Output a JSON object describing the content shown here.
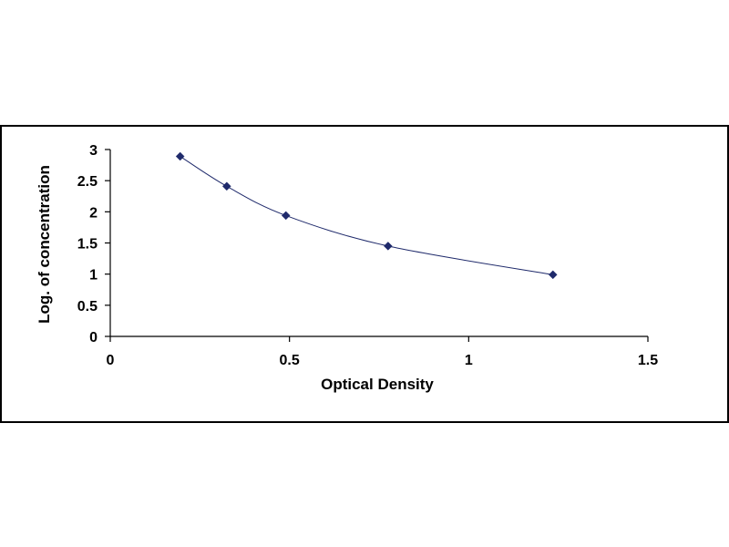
{
  "chart_data": {
    "type": "scatter",
    "title": "",
    "xlabel": "Optical Density",
    "ylabel": "Log. of concentration",
    "xlim": [
      0,
      1.5
    ],
    "ylim": [
      0,
      3
    ],
    "x_ticks": [
      "0",
      "0.5",
      "1",
      "1.5"
    ],
    "y_ticks": [
      "0",
      "0.5",
      "1",
      "1.5",
      "2",
      "2.5",
      "3"
    ],
    "grid": false,
    "legend": false,
    "series": [
      {
        "x": [
          0.195,
          0.325,
          0.49,
          0.775,
          1.235
        ],
        "y": [
          2.89,
          2.41,
          1.94,
          1.45,
          0.99
        ],
        "marker": "diamond",
        "trendline": "smooth curve",
        "color": "#1f2a6b"
      }
    ]
  }
}
